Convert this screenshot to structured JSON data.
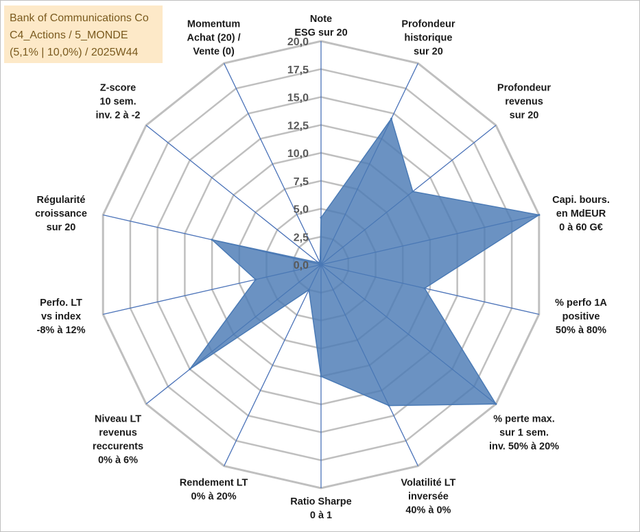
{
  "info": {
    "line1": "Bank of Communications Co",
    "line2": "C4_Actions / 5_MONDE",
    "line3": "(5,1% | 10,0%) / 2025W44"
  },
  "colors": {
    "fill": "#4a7ab5",
    "stroke": "#4a7ab5",
    "grid": "#bfbfbf",
    "spoke": "#4a72b8",
    "info_bg": "#fde9c8",
    "info_text": "#7a5a1e"
  },
  "chart_data": {
    "type": "radar",
    "title": "",
    "range": [
      0,
      20
    ],
    "tick_labels": [
      "0,0",
      "2,5",
      "5,0",
      "7,5",
      "10,0",
      "12,5",
      "15,0",
      "17,5",
      "20,0"
    ],
    "axes": [
      {
        "lines": [
          "Note",
          "ESG sur 20"
        ],
        "value": 4.2
      },
      {
        "lines": [
          "Profondeur",
          "historique",
          "sur 20"
        ],
        "value": 14.5
      },
      {
        "lines": [
          "Profondeur",
          "revenus",
          "sur 20"
        ],
        "value": 10.5
      },
      {
        "lines": [
          "Capi. bours.",
          "en MdEUR",
          "0 à 60 G€"
        ],
        "value": 20.0
      },
      {
        "lines": [
          "% perfo 1A",
          "positive",
          "50% à 80%"
        ],
        "value": 9.5
      },
      {
        "lines": [
          "% perte max.",
          "sur 1 sem.",
          "inv. 50% à 20%"
        ],
        "value": 20.0
      },
      {
        "lines": [
          "Volatilité LT",
          "inversée",
          "40% à 0%"
        ],
        "value": 14.0
      },
      {
        "lines": [
          "Ratio Sharpe",
          "0 à 1"
        ],
        "value": 10.0
      },
      {
        "lines": [
          "Rendement LT",
          "0% à 20%"
        ],
        "value": 2.5
      },
      {
        "lines": [
          "Niveau LT",
          "revenus",
          "reccurents",
          "0% à 6%"
        ],
        "value": 15.0
      },
      {
        "lines": [
          "Perfo. LT",
          "vs index",
          "-8% à 12%"
        ],
        "value": 6.0
      },
      {
        "lines": [
          "Régularité",
          "croissance",
          "sur 20"
        ],
        "value": 10.0
      },
      {
        "lines": [
          "Z-score",
          "10 sem.",
          "inv. 2 à -2"
        ],
        "value": 0.3
      },
      {
        "lines": [
          "Momentum",
          "Achat (20) /",
          "Vente (0)"
        ],
        "value": 0.2
      }
    ]
  }
}
